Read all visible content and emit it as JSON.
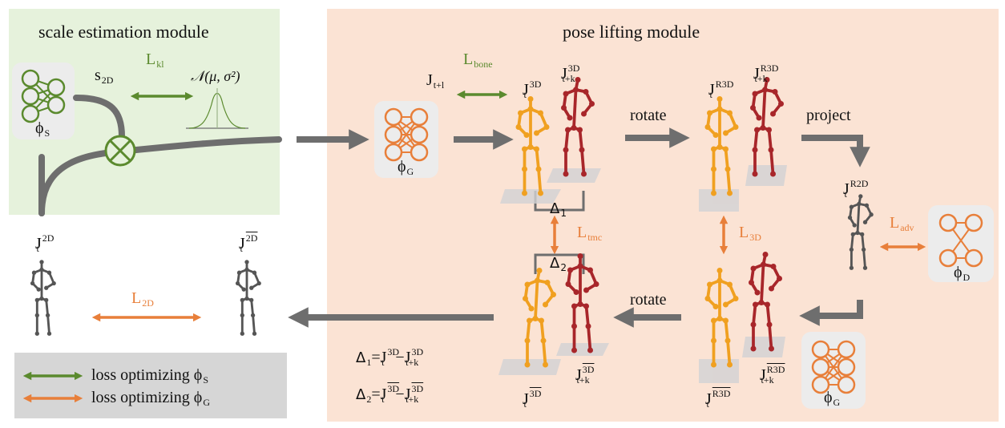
{
  "scale_module": {
    "title": "scale estimation module",
    "phi_s": {
      "base": "ϕ",
      "sub": "S"
    },
    "s2d": {
      "base": "s",
      "sub": "2D"
    },
    "lkl": {
      "base": "L",
      "sub": "kl"
    },
    "normal": "𝒩(μ, σ²)"
  },
  "lift_module": {
    "title": "pose lifting module",
    "phi_g": {
      "base": "ϕ",
      "sub": "G"
    },
    "phi_d": {
      "base": "ϕ",
      "sub": "D"
    },
    "phi_g2": {
      "base": "ϕ",
      "sub": "G"
    },
    "jt1": {
      "base": "J",
      "sub": "t+l"
    },
    "lbone": {
      "base": "L",
      "sub": "bone"
    },
    "j3d_t": {
      "base": "J",
      "sup": "3D",
      "sub": "t"
    },
    "j3d_tk": {
      "base": "J",
      "sup": "3D",
      "sub": "t+k"
    },
    "rotate1": "rotate",
    "jr3d_t": {
      "base": "J",
      "sup": "R3D",
      "sub": "t"
    },
    "jr3d_tk": {
      "base": "J",
      "sup": "R3D",
      "sub": "t+k"
    },
    "project": "project",
    "jr2d_t": {
      "base": "J",
      "sup": "R2D",
      "sub": "t"
    },
    "ladv": {
      "base": "L",
      "sub": "adv"
    },
    "delta1": "Δ",
    "delta1_sub": "1",
    "delta2": "Δ",
    "delta2_sub": "2",
    "ltmc": {
      "base": "L",
      "sub": "tmc"
    },
    "l3d": {
      "base": "L",
      "sub": "3D"
    },
    "rotate2": "rotate",
    "jr3dt_t": {
      "base": "J",
      "sup": "R3D",
      "sub": "t"
    },
    "jr3dt_tk": {
      "base": "J",
      "sup": "R3D",
      "sub": "t+k"
    },
    "j3dt_t": {
      "base": "J",
      "sup": "3D",
      "sub": "t"
    },
    "j3dt_tk": {
      "base": "J",
      "sup": "3D",
      "sub": "t+k"
    },
    "eq1": {
      "lhs": "Δ",
      "lhs_sub": "1",
      "eq": "=",
      "a": "J",
      "a_sup": "3D",
      "a_sub": "t",
      "minus": "−",
      "b": "J",
      "b_sup": "3D",
      "b_sub": "t+k"
    },
    "eq2": {
      "lhs": "Δ",
      "lhs_sub": "2",
      "eq": "=",
      "a": "J",
      "a_sup": "3D",
      "a_sub": "t",
      "minus": "−",
      "b": "J",
      "b_sup": "3D",
      "b_sub": "t+k"
    }
  },
  "left": {
    "j2d_t": {
      "base": "J",
      "sup": "2D",
      "sub": "t"
    },
    "j2dt_t": {
      "base": "J",
      "sup": "2D",
      "sub": "t"
    },
    "l2d": {
      "base": "L",
      "sub": "2D"
    }
  },
  "legend": {
    "item1": "loss optimizing ϕ",
    "item1_sub": "S",
    "item2": "loss optimizing ϕ",
    "item2_sub": "G"
  },
  "colors": {
    "green": "#5b8a2e",
    "orange": "#e87f3a",
    "flow_arrow": "#6e6e6e",
    "skeleton_orange": "#f0a020",
    "skeleton_red": "#a8262a",
    "skeleton_gray": "#555555"
  }
}
